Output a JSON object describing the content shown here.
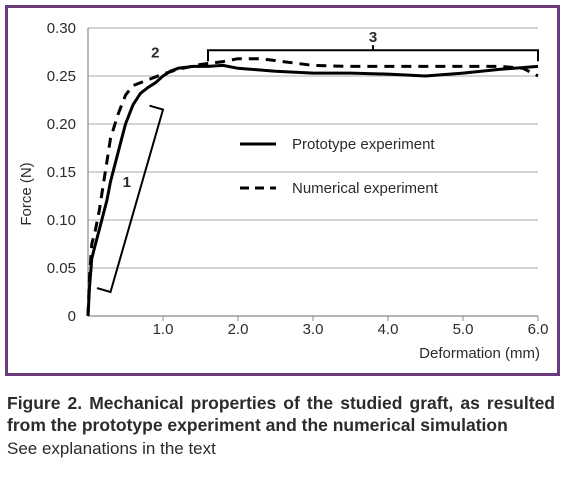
{
  "chart_data": {
    "type": "line",
    "xlabel": "Deformation (mm)",
    "ylabel": "Force (N)",
    "xlim": [
      0,
      6.0
    ],
    "ylim": [
      0,
      0.3
    ],
    "x_ticks": [
      1.0,
      2.0,
      3.0,
      4.0,
      5.0,
      6.0
    ],
    "x_tick_labels": [
      "1.0",
      "2.0",
      "3.0",
      "4.0",
      "5.0",
      "6.0"
    ],
    "y_ticks": [
      0,
      0.05,
      0.1,
      0.15,
      0.2,
      0.25,
      0.3
    ],
    "y_tick_labels": [
      "0",
      "0.05",
      "0.10",
      "0.15",
      "0.20",
      "0.25",
      "0.30"
    ],
    "grid": "horizontal",
    "legend_position": "center-right",
    "series": [
      {
        "name": "Prototype experiment",
        "style": "solid",
        "color": "#000000",
        "points": [
          [
            0.0,
            0.0
          ],
          [
            0.02,
            0.03
          ],
          [
            0.05,
            0.06
          ],
          [
            0.1,
            0.075
          ],
          [
            0.15,
            0.09
          ],
          [
            0.2,
            0.105
          ],
          [
            0.25,
            0.12
          ],
          [
            0.3,
            0.14
          ],
          [
            0.4,
            0.17
          ],
          [
            0.5,
            0.2
          ],
          [
            0.6,
            0.22
          ],
          [
            0.7,
            0.232
          ],
          [
            0.8,
            0.238
          ],
          [
            0.9,
            0.243
          ],
          [
            1.0,
            0.25
          ],
          [
            1.1,
            0.255
          ],
          [
            1.2,
            0.258
          ],
          [
            1.4,
            0.26
          ],
          [
            1.6,
            0.26
          ],
          [
            1.8,
            0.261
          ],
          [
            2.0,
            0.258
          ],
          [
            2.5,
            0.255
          ],
          [
            3.0,
            0.253
          ],
          [
            3.5,
            0.253
          ],
          [
            4.0,
            0.252
          ],
          [
            4.5,
            0.25
          ],
          [
            5.0,
            0.253
          ],
          [
            5.5,
            0.257
          ],
          [
            6.0,
            0.26
          ]
        ]
      },
      {
        "name": "Numerical experiment",
        "style": "dashed",
        "color": "#000000",
        "points": [
          [
            0.0,
            0.0
          ],
          [
            0.02,
            0.04
          ],
          [
            0.05,
            0.075
          ],
          [
            0.1,
            0.09
          ],
          [
            0.15,
            0.11
          ],
          [
            0.2,
            0.135
          ],
          [
            0.25,
            0.16
          ],
          [
            0.3,
            0.185
          ],
          [
            0.4,
            0.21
          ],
          [
            0.5,
            0.23
          ],
          [
            0.6,
            0.24
          ],
          [
            0.8,
            0.246
          ],
          [
            1.0,
            0.252
          ],
          [
            1.2,
            0.257
          ],
          [
            1.5,
            0.262
          ],
          [
            1.8,
            0.265
          ],
          [
            2.0,
            0.268
          ],
          [
            2.3,
            0.268
          ],
          [
            2.6,
            0.265
          ],
          [
            3.0,
            0.261
          ],
          [
            3.5,
            0.26
          ],
          [
            4.0,
            0.26
          ],
          [
            4.5,
            0.26
          ],
          [
            5.0,
            0.26
          ],
          [
            5.5,
            0.26
          ],
          [
            5.8,
            0.258
          ],
          [
            6.0,
            0.25
          ]
        ]
      }
    ],
    "annotations": [
      {
        "label": "1",
        "type": "bracket",
        "from_x": 0.3,
        "to_x": 1.0,
        "from_y": 0.025,
        "to_y": 0.215
      },
      {
        "label": "2",
        "type": "label",
        "x": 0.95,
        "y": 0.26
      },
      {
        "label": "3",
        "type": "bracket",
        "from_x": 1.6,
        "to_x": 6.0,
        "y": 0.28
      }
    ]
  },
  "caption": {
    "title": "Figure 2. Mechanical properties of the studied graft, as resulted from the prototype experiment and the numerical simulation",
    "note": "See explanations in the text"
  },
  "colors": {
    "frame": "#6b3a7a",
    "grid": "#a8a8a8",
    "axis": "#8a8a8a",
    "line": "#000000",
    "text": "#2b2b2b"
  }
}
